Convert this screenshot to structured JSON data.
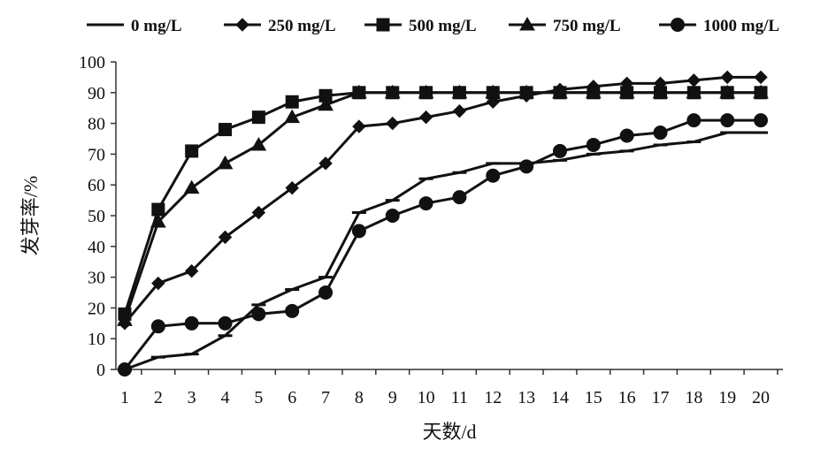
{
  "chart_data": {
    "type": "line",
    "x": [
      1,
      2,
      3,
      4,
      5,
      6,
      7,
      8,
      9,
      10,
      11,
      12,
      13,
      14,
      15,
      16,
      17,
      18,
      19,
      20
    ],
    "xlabel": "天数/d",
    "ylabel": "发芽率/%",
    "xlim": [
      1,
      20
    ],
    "ylim": [
      0,
      100
    ],
    "yticks": [
      0,
      10,
      20,
      30,
      40,
      50,
      60,
      70,
      80,
      90,
      100
    ],
    "xticks": [
      1,
      2,
      3,
      4,
      5,
      6,
      7,
      8,
      9,
      10,
      11,
      12,
      13,
      14,
      15,
      16,
      17,
      18,
      19,
      20
    ],
    "grid": false,
    "legend_position": "top",
    "series": [
      {
        "name": "0 mg/L",
        "marker": "dash",
        "values": [
          0,
          4,
          5,
          11,
          21,
          26,
          30,
          51,
          55,
          62,
          64,
          67,
          67,
          68,
          70,
          71,
          73,
          74,
          77,
          77
        ]
      },
      {
        "name": "250 mg/L",
        "marker": "diamond",
        "values": [
          15,
          28,
          32,
          43,
          51,
          59,
          67,
          79,
          80,
          82,
          84,
          87,
          89,
          91,
          92,
          93,
          93,
          94,
          95,
          95
        ]
      },
      {
        "name": "500 mg/L",
        "marker": "square",
        "values": [
          18,
          52,
          71,
          78,
          82,
          87,
          89,
          90,
          90,
          90,
          90,
          90,
          90,
          90,
          90,
          90,
          90,
          90,
          90,
          90
        ]
      },
      {
        "name": "750 mg/L",
        "marker": "triangle",
        "values": [
          16,
          48,
          59,
          67,
          73,
          82,
          86,
          90,
          90,
          90,
          90,
          90,
          90,
          90,
          90,
          90,
          90,
          90,
          90,
          90
        ]
      },
      {
        "name": "1000 mg/L",
        "marker": "circle",
        "values": [
          0,
          14,
          15,
          15,
          18,
          19,
          25,
          45,
          50,
          54,
          56,
          63,
          66,
          71,
          73,
          76,
          77,
          81,
          81,
          81
        ]
      }
    ]
  }
}
